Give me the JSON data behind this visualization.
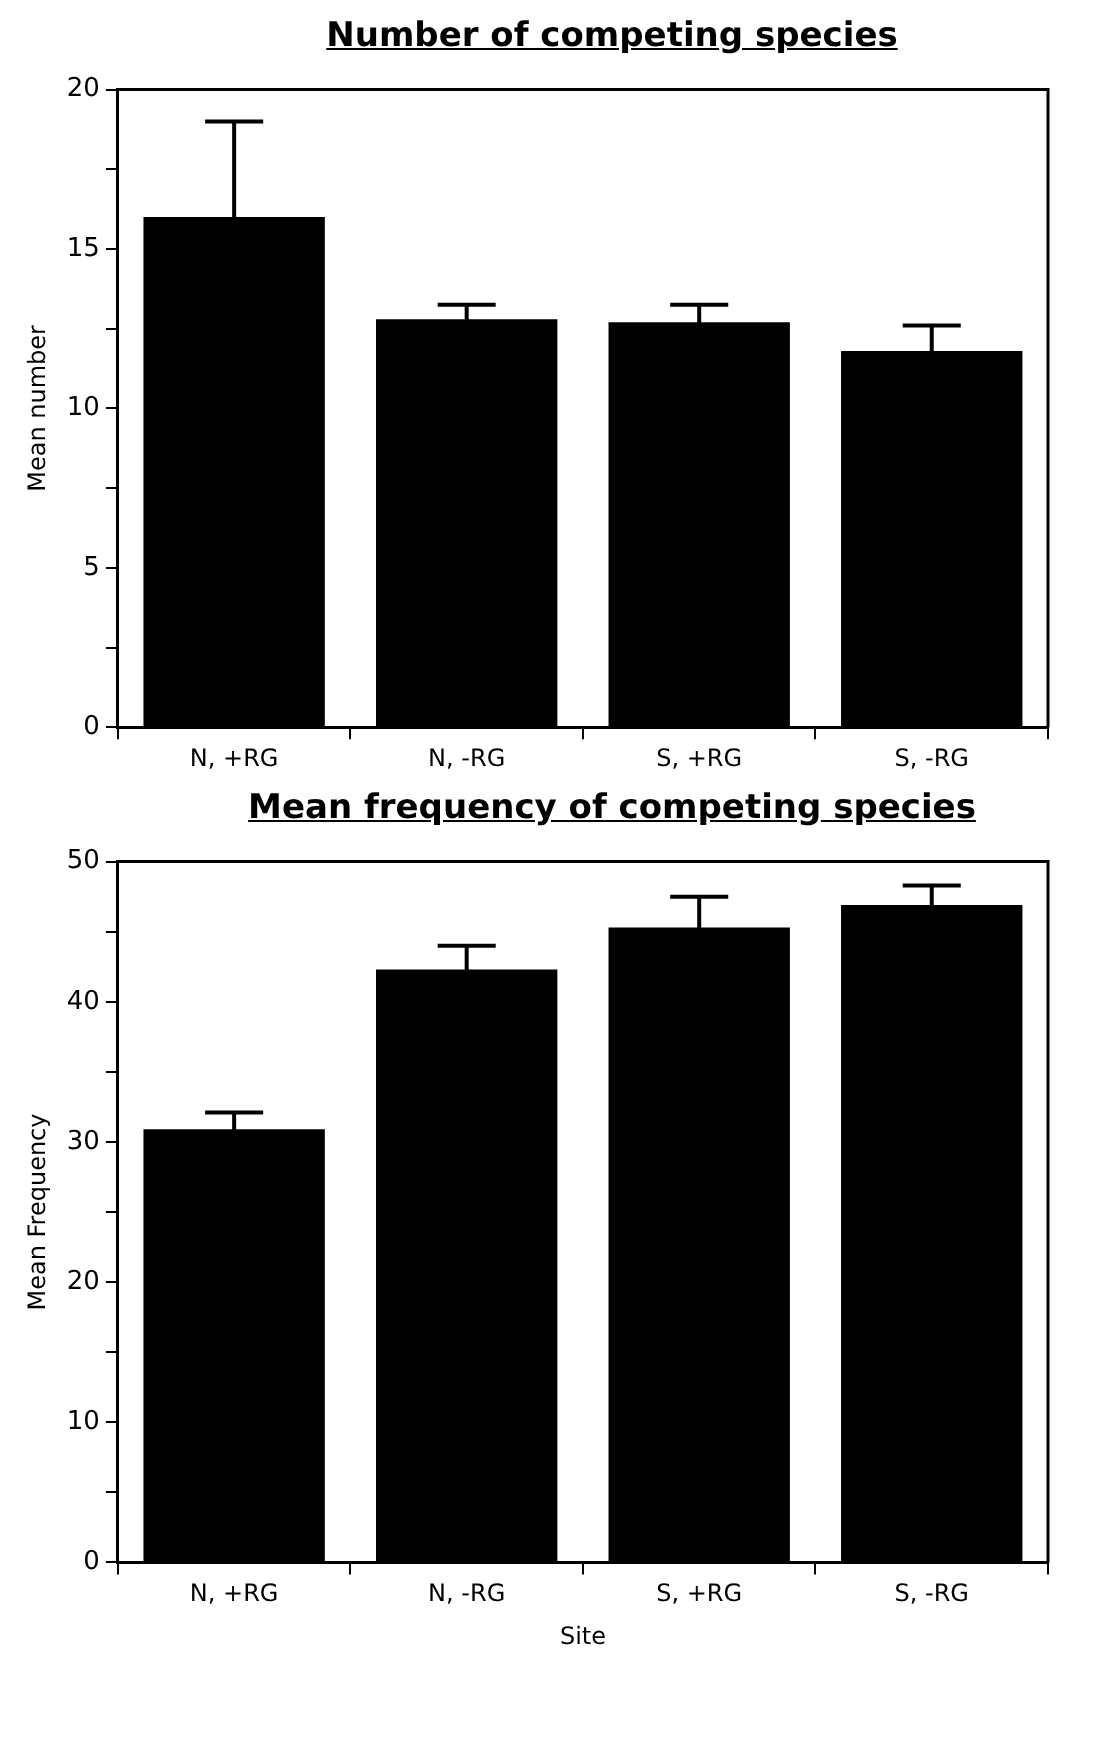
{
  "chart_data": [
    {
      "type": "bar",
      "title": "Number of competing species",
      "ylabel": "Mean number",
      "categories": [
        "N, +RG",
        "N, -RG",
        "S, +RG",
        "S, -RG"
      ],
      "values": [
        16,
        12.8,
        12.7,
        11.8
      ],
      "color": "#000000",
      "errors": [
        3,
        0.45,
        0.55,
        0.8
      ],
      "ylim": [
        0,
        20
      ],
      "yticks": [
        0,
        {
          "value": 2.5,
          "label": null
        },
        5,
        {
          "value": 7.5,
          "label": null
        },
        10,
        {
          "value": 12.5,
          "label": null
        },
        15,
        {
          "value": 17.5,
          "label": null
        },
        20
      ]
    },
    {
      "type": "bar",
      "title": "Mean frequency of competing species",
      "xlabel": "Site",
      "ylabel": "Mean Frequency",
      "categories": [
        "N, +RG",
        "N, -RG",
        "S, +RG",
        "S, -RG"
      ],
      "values": [
        30.9,
        42.3,
        45.3,
        46.9
      ],
      "color": "#000000",
      "errors": [
        1.2,
        1.7,
        2.2,
        1.4
      ],
      "ylim": [
        0,
        50
      ],
      "yticks": [
        0,
        {
          "value": 5,
          "label": null
        },
        10,
        {
          "value": 15,
          "label": null
        },
        20,
        {
          "value": 25,
          "label": null
        },
        30,
        {
          "value": 35,
          "label": null
        },
        40,
        {
          "value": 45,
          "label": null
        },
        50
      ]
    }
  ]
}
